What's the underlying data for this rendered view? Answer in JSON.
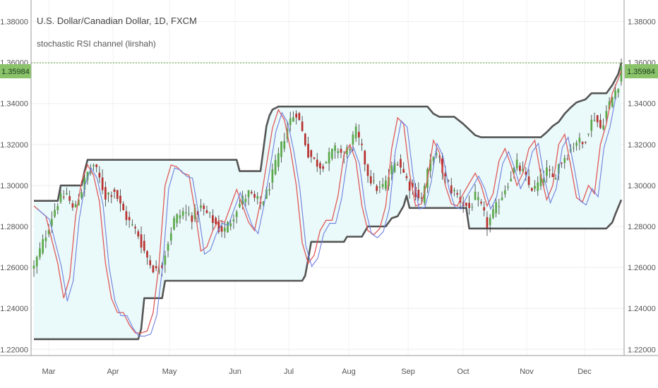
{
  "header": {
    "symbol_line": "U.S. Dollar/Canadian Dollar, 1D, FXCM",
    "indicator_line": "stochastic RSI channel (lirshah)"
  },
  "chart_data": {
    "type": "candlestick",
    "title": "U.S. Dollar/Canadian Dollar, 1D, FXCM",
    "subtitle": "stochastic RSI channel (lirshah)",
    "ylim": [
      1.217,
      1.3905
    ],
    "y_ticks": [
      "1.22000",
      "1.24000",
      "1.26000",
      "1.28000",
      "1.30000",
      "1.32000",
      "1.34000",
      "1.36000",
      "1.38000"
    ],
    "x_ticks": [
      "Mar",
      "Apr",
      "May",
      "Jun",
      "Jul",
      "Aug",
      "Sep",
      "Oct",
      "Nov",
      "Dec"
    ],
    "last_price": "1.35984",
    "last_value": 1.35984,
    "colors": {
      "up": "#5aa84a",
      "down": "#b8312f",
      "channel_line": "#555555",
      "channel_fill": "#eaf9f9",
      "rsi_red": "#e0595a",
      "rsi_blue": "#6d7fe0",
      "last_price_bg": "#8bc36b",
      "last_price_line": "#5ea23c"
    },
    "price_path": [
      {
        "x": 0,
        "y": 1.26
      },
      {
        "x": 3,
        "y": 1.272
      },
      {
        "x": 6,
        "y": 1.285
      },
      {
        "x": 8,
        "y": 1.292
      },
      {
        "x": 11,
        "y": 1.296
      },
      {
        "x": 13,
        "y": 1.288
      },
      {
        "x": 16,
        "y": 1.298
      },
      {
        "x": 18,
        "y": 1.306
      },
      {
        "x": 20,
        "y": 1.31
      },
      {
        "x": 22,
        "y": 1.303
      },
      {
        "x": 24,
        "y": 1.295
      },
      {
        "x": 27,
        "y": 1.298
      },
      {
        "x": 29,
        "y": 1.29
      },
      {
        "x": 32,
        "y": 1.282
      },
      {
        "x": 35,
        "y": 1.276
      },
      {
        "x": 37,
        "y": 1.268
      },
      {
        "x": 39,
        "y": 1.262
      },
      {
        "x": 41,
        "y": 1.258
      },
      {
        "x": 43,
        "y": 1.262
      },
      {
        "x": 45,
        "y": 1.273
      },
      {
        "x": 47,
        "y": 1.283
      },
      {
        "x": 50,
        "y": 1.287
      },
      {
        "x": 53,
        "y": 1.285
      },
      {
        "x": 56,
        "y": 1.289
      },
      {
        "x": 58,
        "y": 1.286
      },
      {
        "x": 60,
        "y": 1.283
      },
      {
        "x": 62,
        "y": 1.279
      },
      {
        "x": 64,
        "y": 1.278
      },
      {
        "x": 66,
        "y": 1.283
      },
      {
        "x": 68,
        "y": 1.289
      },
      {
        "x": 70,
        "y": 1.293
      },
      {
        "x": 72,
        "y": 1.296
      },
      {
        "x": 74,
        "y": 1.293
      },
      {
        "x": 76,
        "y": 1.291
      },
      {
        "x": 78,
        "y": 1.296
      },
      {
        "x": 80,
        "y": 1.305
      },
      {
        "x": 82,
        "y": 1.314
      },
      {
        "x": 84,
        "y": 1.324
      },
      {
        "x": 86,
        "y": 1.332
      },
      {
        "x": 88,
        "y": 1.336
      },
      {
        "x": 90,
        "y": 1.326
      },
      {
        "x": 92,
        "y": 1.316
      },
      {
        "x": 94,
        "y": 1.312
      },
      {
        "x": 96,
        "y": 1.31
      },
      {
        "x": 98,
        "y": 1.312
      },
      {
        "x": 100,
        "y": 1.316
      },
      {
        "x": 102,
        "y": 1.318
      },
      {
        "x": 104,
        "y": 1.314
      },
      {
        "x": 106,
        "y": 1.32
      },
      {
        "x": 108,
        "y": 1.326
      },
      {
        "x": 110,
        "y": 1.317
      },
      {
        "x": 112,
        "y": 1.306
      },
      {
        "x": 114,
        "y": 1.3
      },
      {
        "x": 116,
        "y": 1.298
      },
      {
        "x": 118,
        "y": 1.301
      },
      {
        "x": 120,
        "y": 1.308
      },
      {
        "x": 122,
        "y": 1.313
      },
      {
        "x": 124,
        "y": 1.306
      },
      {
        "x": 126,
        "y": 1.3
      },
      {
        "x": 128,
        "y": 1.297
      },
      {
        "x": 130,
        "y": 1.293
      },
      {
        "x": 132,
        "y": 1.306
      },
      {
        "x": 134,
        "y": 1.316
      },
      {
        "x": 136,
        "y": 1.312
      },
      {
        "x": 138,
        "y": 1.303
      },
      {
        "x": 140,
        "y": 1.298
      },
      {
        "x": 142,
        "y": 1.295
      },
      {
        "x": 144,
        "y": 1.291
      },
      {
        "x": 146,
        "y": 1.289
      },
      {
        "x": 148,
        "y": 1.294
      },
      {
        "x": 150,
        "y": 1.289
      },
      {
        "x": 152,
        "y": 1.281
      },
      {
        "x": 154,
        "y": 1.286
      },
      {
        "x": 156,
        "y": 1.292
      },
      {
        "x": 158,
        "y": 1.299
      },
      {
        "x": 160,
        "y": 1.305
      },
      {
        "x": 162,
        "y": 1.31
      },
      {
        "x": 164,
        "y": 1.306
      },
      {
        "x": 166,
        "y": 1.3
      },
      {
        "x": 168,
        "y": 1.298
      },
      {
        "x": 170,
        "y": 1.303
      },
      {
        "x": 172,
        "y": 1.307
      },
      {
        "x": 174,
        "y": 1.303
      },
      {
        "x": 176,
        "y": 1.31
      },
      {
        "x": 178,
        "y": 1.314
      },
      {
        "x": 180,
        "y": 1.318
      },
      {
        "x": 182,
        "y": 1.322
      },
      {
        "x": 184,
        "y": 1.32
      },
      {
        "x": 186,
        "y": 1.328
      },
      {
        "x": 188,
        "y": 1.334
      },
      {
        "x": 190,
        "y": 1.328
      },
      {
        "x": 192,
        "y": 1.336
      },
      {
        "x": 194,
        "y": 1.343
      },
      {
        "x": 196,
        "y": 1.35
      },
      {
        "x": 197,
        "y": 1.359
      }
    ],
    "channel_upper": [
      {
        "x": 0,
        "y": 1.2925
      },
      {
        "x": 8,
        "y": 1.2925
      },
      {
        "x": 9,
        "y": 1.3
      },
      {
        "x": 16,
        "y": 1.3
      },
      {
        "x": 17,
        "y": 1.307
      },
      {
        "x": 18,
        "y": 1.3125
      },
      {
        "x": 68,
        "y": 1.3125
      },
      {
        "x": 69,
        "y": 1.307
      },
      {
        "x": 76,
        "y": 1.307
      },
      {
        "x": 77,
        "y": 1.318
      },
      {
        "x": 78,
        "y": 1.329
      },
      {
        "x": 79,
        "y": 1.334
      },
      {
        "x": 80,
        "y": 1.337
      },
      {
        "x": 82,
        "y": 1.3385
      },
      {
        "x": 132,
        "y": 1.3385
      },
      {
        "x": 134,
        "y": 1.335
      },
      {
        "x": 136,
        "y": 1.3335
      },
      {
        "x": 141,
        "y": 1.3335
      },
      {
        "x": 144,
        "y": 1.33
      },
      {
        "x": 148,
        "y": 1.3245
      },
      {
        "x": 150,
        "y": 1.3235
      },
      {
        "x": 170,
        "y": 1.3235
      },
      {
        "x": 172,
        "y": 1.326
      },
      {
        "x": 174,
        "y": 1.329
      },
      {
        "x": 176,
        "y": 1.331
      },
      {
        "x": 178,
        "y": 1.335
      },
      {
        "x": 180,
        "y": 1.338
      },
      {
        "x": 182,
        "y": 1.3405
      },
      {
        "x": 185,
        "y": 1.342
      },
      {
        "x": 187,
        "y": 1.345
      },
      {
        "x": 192,
        "y": 1.345
      },
      {
        "x": 194,
        "y": 1.349
      },
      {
        "x": 196,
        "y": 1.3545
      },
      {
        "x": 197,
        "y": 1.3598
      }
    ],
    "channel_lower": [
      {
        "x": 0,
        "y": 1.225
      },
      {
        "x": 35,
        "y": 1.225
      },
      {
        "x": 36,
        "y": 1.23
      },
      {
        "x": 37,
        "y": 1.245
      },
      {
        "x": 43,
        "y": 1.245
      },
      {
        "x": 44,
        "y": 1.2535
      },
      {
        "x": 90,
        "y": 1.2535
      },
      {
        "x": 91,
        "y": 1.256
      },
      {
        "x": 92,
        "y": 1.264
      },
      {
        "x": 93,
        "y": 1.2725
      },
      {
        "x": 104,
        "y": 1.2725
      },
      {
        "x": 105,
        "y": 1.275
      },
      {
        "x": 110,
        "y": 1.275
      },
      {
        "x": 112,
        "y": 1.28
      },
      {
        "x": 118,
        "y": 1.28
      },
      {
        "x": 120,
        "y": 1.284
      },
      {
        "x": 122,
        "y": 1.285
      },
      {
        "x": 124,
        "y": 1.29
      },
      {
        "x": 125,
        "y": 1.295
      },
      {
        "x": 126,
        "y": 1.289
      },
      {
        "x": 145,
        "y": 1.289
      },
      {
        "x": 146,
        "y": 1.279
      },
      {
        "x": 192,
        "y": 1.279
      },
      {
        "x": 194,
        "y": 1.282
      },
      {
        "x": 195,
        "y": 1.286
      },
      {
        "x": 197,
        "y": 1.293
      }
    ],
    "rsi_line": [
      {
        "x": 0,
        "y": 1.29
      },
      {
        "x": 4,
        "y": 1.285
      },
      {
        "x": 8,
        "y": 1.262
      },
      {
        "x": 10,
        "y": 1.245
      },
      {
        "x": 12,
        "y": 1.255
      },
      {
        "x": 14,
        "y": 1.285
      },
      {
        "x": 16,
        "y": 1.302
      },
      {
        "x": 18,
        "y": 1.31
      },
      {
        "x": 20,
        "y": 1.305
      },
      {
        "x": 22,
        "y": 1.292
      },
      {
        "x": 24,
        "y": 1.262
      },
      {
        "x": 26,
        "y": 1.245
      },
      {
        "x": 28,
        "y": 1.238
      },
      {
        "x": 30,
        "y": 1.238
      },
      {
        "x": 32,
        "y": 1.232
      },
      {
        "x": 34,
        "y": 1.228
      },
      {
        "x": 36,
        "y": 1.228
      },
      {
        "x": 38,
        "y": 1.229
      },
      {
        "x": 40,
        "y": 1.238
      },
      {
        "x": 42,
        "y": 1.262
      },
      {
        "x": 44,
        "y": 1.3
      },
      {
        "x": 46,
        "y": 1.31
      },
      {
        "x": 48,
        "y": 1.309
      },
      {
        "x": 50,
        "y": 1.306
      },
      {
        "x": 52,
        "y": 1.305
      },
      {
        "x": 54,
        "y": 1.288
      },
      {
        "x": 56,
        "y": 1.268
      },
      {
        "x": 58,
        "y": 1.27
      },
      {
        "x": 60,
        "y": 1.278
      },
      {
        "x": 62,
        "y": 1.283
      },
      {
        "x": 64,
        "y": 1.282
      },
      {
        "x": 66,
        "y": 1.29
      },
      {
        "x": 68,
        "y": 1.298
      },
      {
        "x": 70,
        "y": 1.29
      },
      {
        "x": 72,
        "y": 1.282
      },
      {
        "x": 74,
        "y": 1.278
      },
      {
        "x": 76,
        "y": 1.292
      },
      {
        "x": 78,
        "y": 1.31
      },
      {
        "x": 80,
        "y": 1.328
      },
      {
        "x": 82,
        "y": 1.337
      },
      {
        "x": 84,
        "y": 1.332
      },
      {
        "x": 86,
        "y": 1.318
      },
      {
        "x": 88,
        "y": 1.3
      },
      {
        "x": 90,
        "y": 1.272
      },
      {
        "x": 92,
        "y": 1.262
      },
      {
        "x": 94,
        "y": 1.266
      },
      {
        "x": 96,
        "y": 1.278
      },
      {
        "x": 98,
        "y": 1.283
      },
      {
        "x": 100,
        "y": 1.283
      },
      {
        "x": 102,
        "y": 1.295
      },
      {
        "x": 104,
        "y": 1.315
      },
      {
        "x": 106,
        "y": 1.32
      },
      {
        "x": 108,
        "y": 1.312
      },
      {
        "x": 110,
        "y": 1.29
      },
      {
        "x": 112,
        "y": 1.278
      },
      {
        "x": 114,
        "y": 1.276
      },
      {
        "x": 116,
        "y": 1.279
      },
      {
        "x": 118,
        "y": 1.29
      },
      {
        "x": 120,
        "y": 1.318
      },
      {
        "x": 122,
        "y": 1.333
      },
      {
        "x": 124,
        "y": 1.33
      },
      {
        "x": 126,
        "y": 1.306
      },
      {
        "x": 128,
        "y": 1.29
      },
      {
        "x": 130,
        "y": 1.291
      },
      {
        "x": 132,
        "y": 1.303
      },
      {
        "x": 134,
        "y": 1.322
      },
      {
        "x": 136,
        "y": 1.316
      },
      {
        "x": 138,
        "y": 1.3
      },
      {
        "x": 140,
        "y": 1.291
      },
      {
        "x": 142,
        "y": 1.29
      },
      {
        "x": 144,
        "y": 1.296
      },
      {
        "x": 146,
        "y": 1.301
      },
      {
        "x": 148,
        "y": 1.306
      },
      {
        "x": 150,
        "y": 1.3
      },
      {
        "x": 152,
        "y": 1.29
      },
      {
        "x": 154,
        "y": 1.296
      },
      {
        "x": 156,
        "y": 1.312
      },
      {
        "x": 158,
        "y": 1.318
      },
      {
        "x": 160,
        "y": 1.31
      },
      {
        "x": 162,
        "y": 1.3
      },
      {
        "x": 164,
        "y": 1.306
      },
      {
        "x": 166,
        "y": 1.318
      },
      {
        "x": 168,
        "y": 1.322
      },
      {
        "x": 170,
        "y": 1.305
      },
      {
        "x": 172,
        "y": 1.293
      },
      {
        "x": 174,
        "y": 1.3
      },
      {
        "x": 176,
        "y": 1.32
      },
      {
        "x": 178,
        "y": 1.325
      },
      {
        "x": 180,
        "y": 1.31
      },
      {
        "x": 182,
        "y": 1.294
      },
      {
        "x": 184,
        "y": 1.292
      },
      {
        "x": 186,
        "y": 1.3
      },
      {
        "x": 188,
        "y": 1.296
      },
      {
        "x": 190,
        "y": 1.32
      },
      {
        "x": 192,
        "y": 1.33
      },
      {
        "x": 194,
        "y": 1.345
      },
      {
        "x": 196,
        "y": 1.352
      },
      {
        "x": 197,
        "y": 1.356
      }
    ],
    "n_points": 198
  }
}
